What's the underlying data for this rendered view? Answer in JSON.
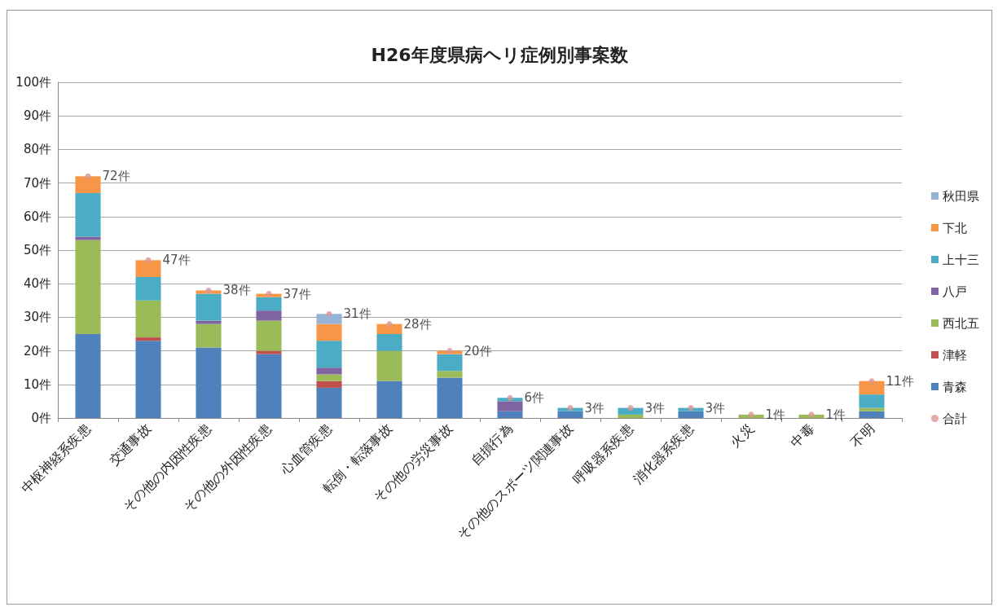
{
  "chart_data": {
    "type": "bar",
    "stacked": true,
    "title": "H26年度県病ヘリ症例別事案数",
    "categories": [
      "中枢神経系疾患",
      "交通事故",
      "その他の内因性疾患",
      "その他の外因性疾患",
      "心血管疾患",
      "転倒・転落事故",
      "その他の労災事故",
      "自損行為",
      "その他のスポーツ関連事故",
      "呼吸器系疾患",
      "消化器系疾患",
      "火災",
      "中毒",
      "不明"
    ],
    "series": [
      {
        "name": "青森",
        "color": "#4f81bd",
        "values": [
          25,
          23,
          21,
          19,
          9,
          11,
          12,
          2,
          2,
          0,
          2,
          0,
          0,
          2
        ]
      },
      {
        "name": "津軽",
        "color": "#c0504d",
        "values": [
          0,
          1,
          0,
          1,
          2,
          0,
          0,
          0,
          0,
          0,
          0,
          0,
          0,
          0
        ]
      },
      {
        "name": "西北五",
        "color": "#9bbb59",
        "values": [
          28,
          11,
          7,
          9,
          2,
          9,
          2,
          0,
          0,
          1,
          0,
          1,
          1,
          1
        ]
      },
      {
        "name": "八戸",
        "color": "#8064a2",
        "values": [
          1,
          0,
          1,
          3,
          2,
          0,
          0,
          3,
          0,
          0,
          0,
          0,
          0,
          0
        ]
      },
      {
        "name": "上十三",
        "color": "#4bacc6",
        "values": [
          13,
          7,
          8,
          4,
          8,
          5,
          5,
          1,
          1,
          2,
          1,
          0,
          0,
          4
        ]
      },
      {
        "name": "下北",
        "color": "#f79646",
        "values": [
          5,
          5,
          1,
          1,
          5,
          3,
          1,
          0,
          0,
          0,
          0,
          0,
          0,
          4
        ]
      },
      {
        "name": "秋田県",
        "color": "#95b3d7",
        "values": [
          0,
          0,
          0,
          0,
          3,
          0,
          0,
          0,
          0,
          0,
          0,
          0,
          0,
          0
        ]
      },
      {
        "name": "合計",
        "type": "scatter",
        "color": "#d99694",
        "values": [
          72,
          47,
          38,
          37,
          31,
          28,
          20,
          6,
          3,
          3,
          3,
          1,
          1,
          11
        ],
        "value_labels": [
          "72件",
          "47件",
          "38件",
          "37件",
          "31件",
          "28件",
          "20件",
          "6件",
          "3件",
          "3件",
          "3件",
          "1件",
          "1件",
          "11件"
        ]
      }
    ],
    "ylim": [
      0,
      100
    ],
    "yticks": [
      {
        "value": 0,
        "label": "0件"
      },
      {
        "value": 10,
        "label": "10件"
      },
      {
        "value": 20,
        "label": "20件"
      },
      {
        "value": 30,
        "label": "30件"
      },
      {
        "value": 40,
        "label": "40件"
      },
      {
        "value": 50,
        "label": "50件"
      },
      {
        "value": 60,
        "label": "60件"
      },
      {
        "value": 70,
        "label": "70件"
      },
      {
        "value": 80,
        "label": "80件"
      },
      {
        "value": 90,
        "label": "90件"
      },
      {
        "value": 100,
        "label": "100件"
      }
    ],
    "grid": "y",
    "legend": "right",
    "marker": "circle"
  }
}
